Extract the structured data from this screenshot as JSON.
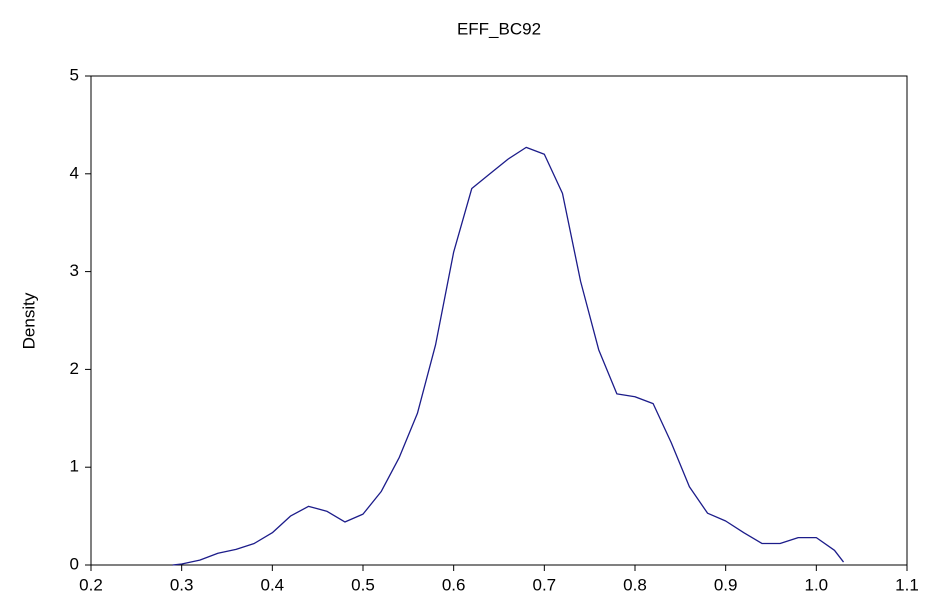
{
  "chart_data": {
    "type": "line",
    "title": "EFF_BC92",
    "y_label": "Density",
    "x": [
      0.29,
      0.3,
      0.32,
      0.34,
      0.36,
      0.38,
      0.4,
      0.42,
      0.44,
      0.46,
      0.48,
      0.5,
      0.52,
      0.54,
      0.56,
      0.58,
      0.6,
      0.62,
      0.64,
      0.66,
      0.68,
      0.7,
      0.72,
      0.74,
      0.76,
      0.78,
      0.8,
      0.82,
      0.84,
      0.86,
      0.88,
      0.9,
      0.92,
      0.94,
      0.96,
      0.98,
      1.0,
      1.02,
      1.03
    ],
    "series": [
      {
        "color": "#1c1c8a",
        "values": [
          0.0,
          0.01,
          0.05,
          0.12,
          0.16,
          0.22,
          0.33,
          0.5,
          0.6,
          0.55,
          0.44,
          0.52,
          0.75,
          1.1,
          1.55,
          2.25,
          3.2,
          3.85,
          4.0,
          4.15,
          4.27,
          4.2,
          3.8,
          2.9,
          2.2,
          1.75,
          1.72,
          1.65,
          1.25,
          0.8,
          0.53,
          0.45,
          0.33,
          0.22,
          0.22,
          0.28,
          0.28,
          0.15,
          0.03
        ]
      }
    ],
    "xlim": [
      0.2,
      1.1
    ],
    "ylim": [
      0,
      5
    ],
    "xticks": [
      0.2,
      0.3,
      0.4,
      0.5,
      0.6,
      0.7,
      0.8,
      0.9,
      {
        "value": 1.0,
        "label": "1.0"
      },
      1.1
    ],
    "yticks": [
      0,
      1,
      2,
      3,
      4,
      5
    ]
  }
}
